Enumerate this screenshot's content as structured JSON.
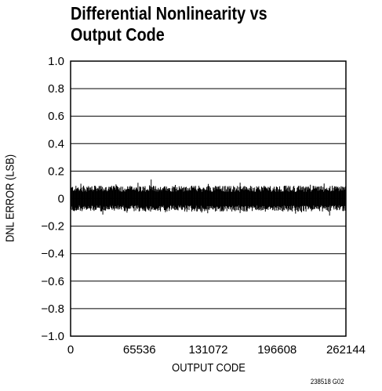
{
  "chart_data": {
    "type": "line",
    "title_lines": [
      "Differential Nonlinearity vs",
      "Output Code"
    ],
    "xlabel": "OUTPUT CODE",
    "ylabel": "DNL ERROR (LSB)",
    "xlim": [
      0,
      262144
    ],
    "ylim": [
      -1.0,
      1.0
    ],
    "x_ticks": [
      0,
      65536,
      131072,
      196608,
      262144
    ],
    "x_tick_labels": [
      "0",
      "65536",
      "131072",
      "196608",
      "262144"
    ],
    "y_ticks": [
      1.0,
      0.8,
      0.6,
      0.4,
      0.2,
      0,
      -0.2,
      -0.4,
      -0.6,
      -0.8,
      -1.0
    ],
    "y_tick_labels": [
      "1.0",
      "0.8",
      "0.6",
      "0.4",
      "0.2",
      "0",
      "−0.2",
      "−0.4",
      "−0.6",
      "−0.8",
      "−1.0"
    ],
    "grid": "horizontal",
    "series_description_values": {
      "typical_band": [
        -0.09,
        0.09
      ],
      "max_positive": 0.15,
      "max_negative": -0.15
    }
  },
  "figure_number": "238518 G02",
  "colors": {
    "data": "#000000",
    "grid": "#000000",
    "background": "#ffffff"
  }
}
